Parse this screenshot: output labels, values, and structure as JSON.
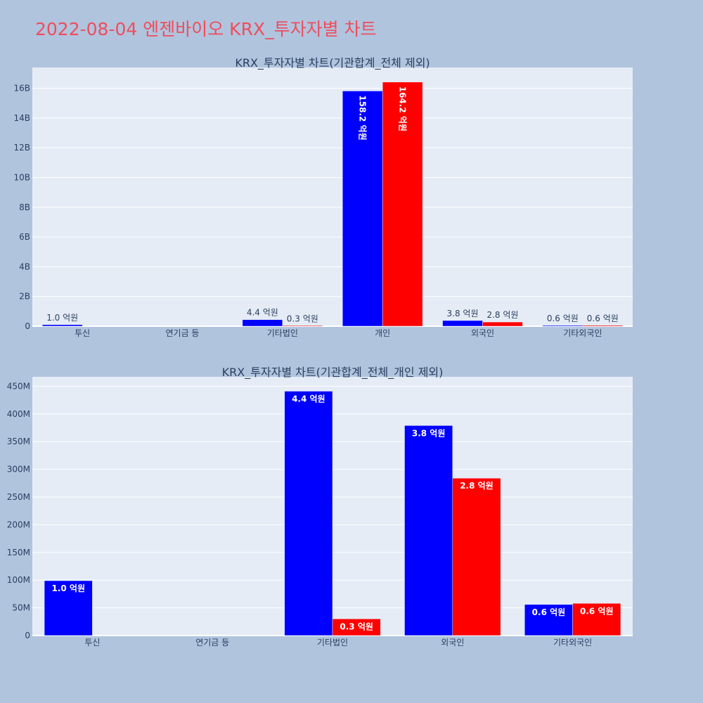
{
  "page_title": "2022-08-04 엔젠바이오 KRX_투자자별 차트",
  "colors": {
    "page_bg": "#b0c4de",
    "plot_bg": "#e5ecf6",
    "series_a": "#0000ff",
    "series_b": "#ff0000",
    "title": "#ef4d5d",
    "text": "#2a3f5f"
  },
  "chart_data": [
    {
      "type": "bar",
      "title": "KRX_투자자별 차트(기관합계_전체 제외)",
      "categories": [
        "투신",
        "연기금 등",
        "기타법인",
        "개인",
        "외국인",
        "기타외국인"
      ],
      "yticks": [
        {
          "value": 0,
          "label": "0"
        },
        {
          "value": 2000000000,
          "label": "2B"
        },
        {
          "value": 4000000000,
          "label": "4B"
        },
        {
          "value": 6000000000,
          "label": "6B"
        },
        {
          "value": 8000000000,
          "label": "8B"
        },
        {
          "value": 10000000000,
          "label": "10B"
        },
        {
          "value": 12000000000,
          "label": "12B"
        },
        {
          "value": 14000000000,
          "label": "14B"
        },
        {
          "value": 16000000000,
          "label": "16B"
        }
      ],
      "ylim": [
        0,
        17400000000
      ],
      "grid": true,
      "series": [
        {
          "values": [
            100000000,
            null,
            440000000,
            15820000000,
            380000000,
            56000000
          ],
          "labels": [
            "1.0 억원",
            "",
            "4.4 억원",
            "158.2 억원",
            "3.8 억원",
            "0.6 억원"
          ]
        },
        {
          "values": [
            null,
            null,
            30000000,
            16420000000,
            280000000,
            58000000
          ],
          "labels": [
            "",
            "",
            "0.3 억원",
            "164.2 억원",
            "2.8 억원",
            "0.6 억원"
          ]
        }
      ]
    },
    {
      "type": "bar",
      "title": "KRX_투자자별 차트(기관합계_전체_개인 제외)",
      "categories": [
        "투신",
        "연기금 등",
        "기타법인",
        "외국인",
        "기타외국인"
      ],
      "yticks": [
        {
          "value": 0,
          "label": "0"
        },
        {
          "value": 50000000,
          "label": "50M"
        },
        {
          "value": 100000000,
          "label": "100M"
        },
        {
          "value": 150000000,
          "label": "150M"
        },
        {
          "value": 200000000,
          "label": "200M"
        },
        {
          "value": 250000000,
          "label": "250M"
        },
        {
          "value": 300000000,
          "label": "300M"
        },
        {
          "value": 350000000,
          "label": "350M"
        },
        {
          "value": 400000000,
          "label": "400M"
        },
        {
          "value": 450000000,
          "label": "450M"
        }
      ],
      "ylim": [
        0,
        467000000
      ],
      "grid": true,
      "series": [
        {
          "values": [
            99000000,
            null,
            441000000,
            379000000,
            56000000
          ],
          "labels": [
            "1.0 억원",
            "",
            "4.4 억원",
            "3.8 억원",
            "0.6 억원"
          ]
        },
        {
          "values": [
            null,
            null,
            30000000,
            284000000,
            58000000
          ],
          "labels": [
            "",
            "",
            "0.3 억원",
            "2.8 억원",
            "0.6 억원"
          ]
        }
      ]
    }
  ]
}
